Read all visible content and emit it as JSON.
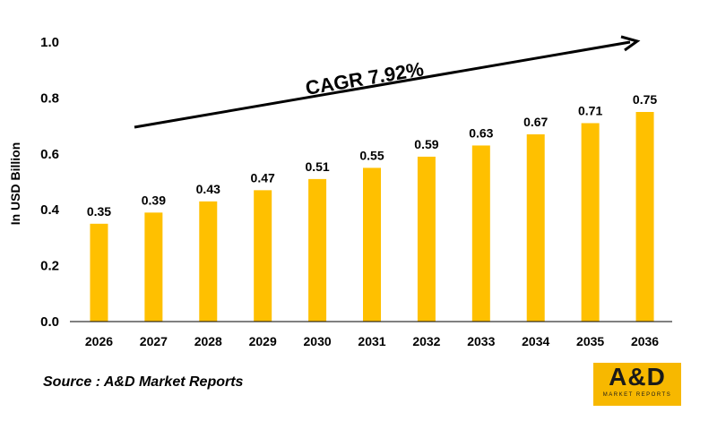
{
  "chart_data": {
    "type": "bar",
    "categories": [
      "2026",
      "2027",
      "2028",
      "2029",
      "2030",
      "2031",
      "2032",
      "2033",
      "2034",
      "2035",
      "2036"
    ],
    "values": [
      0.35,
      0.39,
      0.43,
      0.47,
      0.51,
      0.55,
      0.59,
      0.63,
      0.67,
      0.71,
      0.75
    ],
    "data_labels": [
      "0.35",
      "0.39",
      "0.43",
      "0.47",
      "0.51",
      "0.55",
      "0.59",
      "0.63",
      "0.67",
      "0.71",
      "0.75"
    ],
    "ylabel": "In USD Billion",
    "xlabel": "",
    "ylim": [
      0,
      1.0
    ],
    "yticks": [
      "0.0",
      "0.2",
      "0.4",
      "0.6",
      "0.8",
      "1.0"
    ],
    "annotation": "CAGR 7.92%",
    "bar_color": "#ffc000",
    "grid": false,
    "legend": "none"
  },
  "source_text": "Source : A&D Market Reports",
  "logo": {
    "main": "A&D",
    "sub": "MARKET REPORTS",
    "color": "#f7b800"
  }
}
